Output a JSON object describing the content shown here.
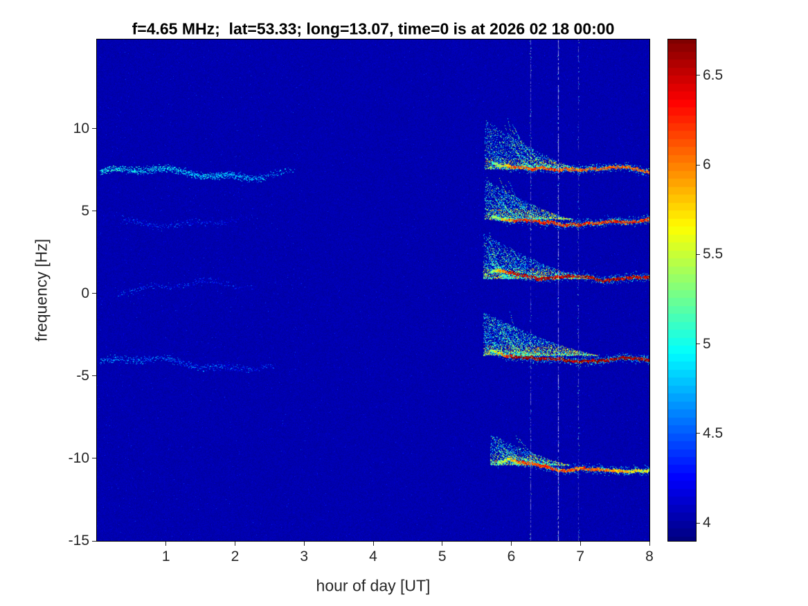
{
  "chart_data": {
    "type": "heatmap",
    "title": "f=4.65 MHz;  lat=53.33; long=13.07, time=0 is at 2026 02 18 00:00",
    "xlabel": "hour of day [UT]",
    "ylabel": "frequency [Hz]",
    "xlim": [
      0,
      8
    ],
    "ylim": [
      -15,
      15.4
    ],
    "xticks": [
      1,
      2,
      3,
      4,
      5,
      6,
      7,
      8
    ],
    "yticks": [
      -15,
      -10,
      -5,
      0,
      5,
      10
    ],
    "colorbar": {
      "min": 3.9,
      "max": 6.7,
      "ticks": [
        4,
        4.5,
        5,
        5.5,
        6,
        6.5
      ],
      "colormap": "jet",
      "levels": 64
    },
    "background_value": 4.03,
    "spectral_lines": [
      {
        "freq": 7.4,
        "early": {
          "x0": 0.05,
          "x1": 2.9,
          "dy": -0.1,
          "intensity": 4.95,
          "density": 0.9,
          "wiggle": 0.25
        },
        "strong": {
          "x0": 5.62,
          "x1": 8,
          "peak": 6.15,
          "settle": 0.55,
          "fan_end": 7.0,
          "fan_height": 3.0,
          "fan_density": 1.0,
          "fade_after": 8
        }
      },
      {
        "freq": 4.35,
        "early": {
          "x0": 0.35,
          "x1": 2.35,
          "dy": 0.0,
          "intensity": 4.45,
          "density": 0.33,
          "wiggle": 0.2
        },
        "strong": {
          "x0": 5.62,
          "x1": 8,
          "peak": 6.3,
          "settle": 0.5,
          "fan_end": 6.9,
          "fan_height": 2.4,
          "fan_density": 1.0,
          "fade_after": 8
        }
      },
      {
        "freq": 0.75,
        "early": {
          "x0": 0.3,
          "x1": 2.45,
          "dy": -0.35,
          "intensity": 4.45,
          "density": 0.3,
          "wiggle": 0.25
        },
        "strong": {
          "x0": 5.6,
          "x1": 8,
          "peak": 6.55,
          "settle": 0.6,
          "fan_end": 7.1,
          "fan_height": 2.7,
          "fan_density": 1.15,
          "fade_after": 8
        }
      },
      {
        "freq": -3.9,
        "early": {
          "x0": 0.05,
          "x1": 2.75,
          "dy": -0.35,
          "intensity": 4.6,
          "density": 0.5,
          "wiggle": 0.3
        },
        "strong": {
          "x0": 5.6,
          "x1": 8,
          "peak": 6.65,
          "settle": 0.55,
          "fan_end": 7.25,
          "fan_height": 2.6,
          "fan_density": 1.3,
          "fade_after": 8
        }
      },
      {
        "freq": -10.55,
        "early": null,
        "strong": {
          "x0": 5.7,
          "x1": 8,
          "peak": 6.2,
          "settle": 0.45,
          "fan_end": 6.85,
          "fan_height": 1.9,
          "fan_density": 0.8,
          "fade_after": 7.1
        }
      }
    ],
    "interference_columns": [
      {
        "x": 6.28,
        "strength": 0.5
      },
      {
        "x": 6.68,
        "strength": 0.85
      },
      {
        "x": 6.97,
        "strength": 0.4
      }
    ]
  }
}
